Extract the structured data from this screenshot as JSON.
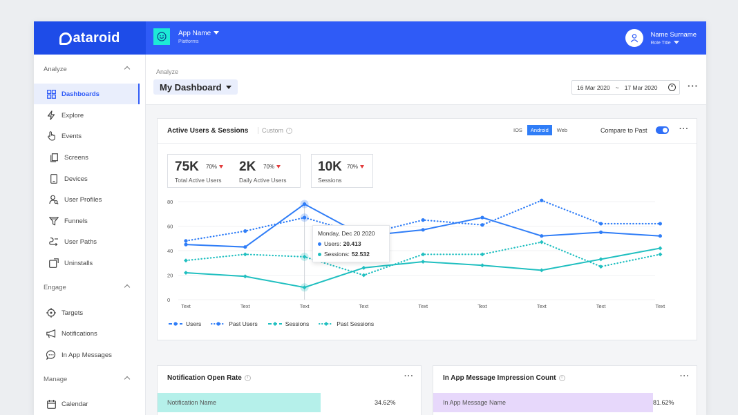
{
  "brand": {
    "name": "ataroid"
  },
  "app_switcher": {
    "name": "App Name",
    "sub": "Platforms"
  },
  "user": {
    "name": "Name Surname",
    "role": "Role Title"
  },
  "sidebar": {
    "sections": [
      {
        "label": "Analyze"
      },
      {
        "label": "Engage"
      },
      {
        "label": "Manage"
      }
    ],
    "items": [
      {
        "label": "Dashboards",
        "icon": "dashboard-icon"
      },
      {
        "label": "Explore",
        "icon": "bolt-icon"
      },
      {
        "label": "Events",
        "icon": "pointer-hand-icon"
      },
      {
        "label": "Screens",
        "icon": "screens-icon"
      },
      {
        "label": "Devices",
        "icon": "device-icon"
      },
      {
        "label": "User Profiles",
        "icon": "user-search-icon"
      },
      {
        "label": "Funnels",
        "icon": "funnel-icon"
      },
      {
        "label": "User Paths",
        "icon": "path-icon"
      },
      {
        "label": "Uninstalls",
        "icon": "uninstall-icon"
      },
      {
        "label": "Targets",
        "icon": "target-icon"
      },
      {
        "label": "Notifications",
        "icon": "megaphone-icon"
      },
      {
        "label": "In App Messages",
        "icon": "chat-icon"
      },
      {
        "label": "Calendar",
        "icon": "calendar-icon"
      }
    ]
  },
  "header": {
    "breadcrumb": "Analyze",
    "title": "My Dashboard",
    "date_from": "16 Mar 2020",
    "date_sep": "~",
    "date_to": "17 Mar 2020",
    "more": "···"
  },
  "main_card": {
    "title": "Active Users & Sessions",
    "custom": "Custom",
    "platforms": [
      "IOS",
      "Android",
      "Web"
    ],
    "active_platform": "Android",
    "compare_label": "Compare to Past",
    "compare_on": true,
    "kpis": [
      {
        "value": "75K",
        "pct": "70%",
        "caption": "Total Active Users"
      },
      {
        "value": "2K",
        "pct": "70%",
        "caption": "Daily Active Users"
      },
      {
        "value": "10K",
        "pct": "70%",
        "caption": "Sessions"
      }
    ],
    "tooltip": {
      "date": "Monday, Dec 20 2020",
      "users_label": "Users:",
      "users_value": "20.413",
      "sessions_label": "Sessions:",
      "sessions_value": "52.532"
    }
  },
  "chart_data": {
    "type": "line",
    "categories": [
      "Text",
      "Text",
      "Text",
      "Text",
      "Text",
      "Text",
      "Text",
      "Text",
      "Text"
    ],
    "ylim": [
      0,
      80
    ],
    "yticks": [
      0,
      20,
      40,
      60,
      80
    ],
    "grid": true,
    "legend_position": "bottom-left",
    "series": [
      {
        "name": "Users",
        "style": "solid",
        "color": "#2f7df7",
        "marker": "circle",
        "values": [
          45,
          43,
          78,
          52,
          57,
          67,
          52,
          55,
          52
        ]
      },
      {
        "name": "Past Users",
        "style": "dotted",
        "color": "#2f7df7",
        "marker": "circle",
        "values": [
          48,
          56,
          67,
          53,
          65,
          61,
          81,
          62,
          62
        ]
      },
      {
        "name": "Sessions",
        "style": "solid",
        "color": "#20bfc0",
        "marker": "diamond",
        "values": [
          22,
          19,
          10,
          26,
          31,
          28,
          24,
          33,
          42
        ]
      },
      {
        "name": "Past Sessions",
        "style": "dotted",
        "color": "#20bfc0",
        "marker": "diamond",
        "values": [
          32,
          37,
          35,
          20,
          37,
          37,
          47,
          27,
          37
        ]
      }
    ],
    "highlight_index": 2
  },
  "notif_card": {
    "title": "Notification Open Rate",
    "rows": [
      {
        "name": "Notification Name",
        "value": "34.62%",
        "fraction": 0.3462
      }
    ],
    "bar_color": "#b5f0ea"
  },
  "inapp_card": {
    "title": "In App Message Impression Count",
    "rows": [
      {
        "name": "In App Message Name",
        "value": "81.62%",
        "fraction": 0.8162
      }
    ],
    "bar_color": "#e7d8fb"
  }
}
